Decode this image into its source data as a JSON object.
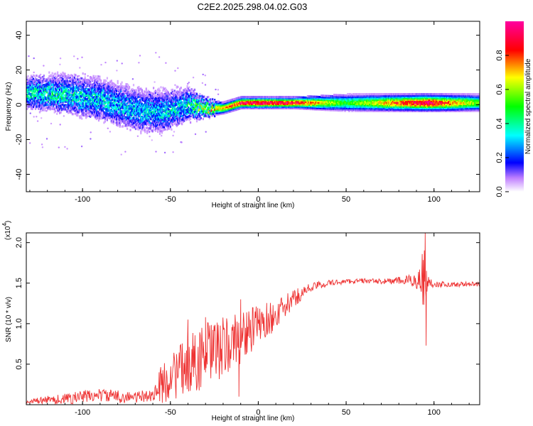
{
  "chart_data": [
    {
      "type": "heatmap",
      "title": "C2E2.2025.298.04.02.G03",
      "xlabel": "Height of straight line (km)",
      "ylabel": "Frequency (Hz)",
      "xlim": [
        -132,
        126
      ],
      "ylim": [
        -50,
        48
      ],
      "xticks": [
        "-100",
        "-50",
        "0",
        "50",
        "100"
      ],
      "yticks": [
        "40",
        "20",
        "0",
        "-20",
        "-40"
      ],
      "colorbar": {
        "label": "Normalized spectral amplitude",
        "range": [
          0,
          1
        ],
        "ticks": [
          "0.0",
          "0.2",
          "0.4",
          "0.6",
          "0.8"
        ],
        "colors": [
          "#ffffff",
          "#a000ff",
          "#0000ff",
          "#00ffff",
          "#00ff00",
          "#ffff00",
          "#ff0000",
          "#ff00a0"
        ]
      },
      "trace": [
        {
          "x": -132,
          "f": 7,
          "amp": 0.35,
          "spread": 6
        },
        {
          "x": -110,
          "f": 6,
          "amp": 0.35,
          "spread": 7
        },
        {
          "x": -90,
          "f": 3,
          "amp": 0.3,
          "spread": 8
        },
        {
          "x": -70,
          "f": -3,
          "amp": 0.3,
          "spread": 8
        },
        {
          "x": -55,
          "f": -4,
          "amp": 0.3,
          "spread": 8
        },
        {
          "x": -40,
          "f": 0,
          "amp": 0.35,
          "spread": 6
        },
        {
          "x": -30,
          "f": -2,
          "amp": 0.6,
          "spread": 3
        },
        {
          "x": -20,
          "f": -2,
          "amp": 0.75,
          "spread": 2
        },
        {
          "x": -10,
          "f": 1,
          "amp": 0.9,
          "spread": 2
        },
        {
          "x": 0,
          "f": 1,
          "amp": 0.95,
          "spread": 2
        },
        {
          "x": 20,
          "f": 1,
          "amp": 0.9,
          "spread": 2
        },
        {
          "x": 50,
          "f": 1,
          "amp": 0.5,
          "spread": 3
        },
        {
          "x": 75,
          "f": 1,
          "amp": 0.75,
          "spread": 3
        },
        {
          "x": 95,
          "f": 1,
          "amp": 0.95,
          "spread": 3
        },
        {
          "x": 126,
          "f": 1,
          "amp": 0.55,
          "spread": 3
        }
      ]
    },
    {
      "type": "line",
      "ylabel": "SNR (10 * v/v)",
      "xlabel": "Height of straight line (km)",
      "multiplier_base": "(x10",
      "multiplier_exp": "4",
      "multiplier_close": ")",
      "xlim": [
        -132,
        126
      ],
      "ylim": [
        0,
        2.12
      ],
      "xticks": [
        "-100",
        "-50",
        "0",
        "50",
        "100"
      ],
      "yticks": [
        "0.5",
        "1.0",
        "1.5",
        "2.0"
      ],
      "series": [
        {
          "name": "SNR",
          "color": "#ee3333",
          "x": [
            -132,
            -120,
            -110,
            -100,
            -90,
            -80,
            -70,
            -60,
            -55,
            -50,
            -45,
            -40,
            -35,
            -30,
            -25,
            -20,
            -15,
            -10,
            -5,
            0,
            5,
            10,
            15,
            20,
            25,
            30,
            40,
            50,
            60,
            70,
            80,
            88,
            92,
            94,
            95,
            96,
            98,
            100,
            110,
            120,
            126
          ],
          "y": [
            0.03,
            0.06,
            0.07,
            0.1,
            0.12,
            0.1,
            0.09,
            0.12,
            0.25,
            0.35,
            0.4,
            0.5,
            0.55,
            0.6,
            0.65,
            0.7,
            0.75,
            0.85,
            0.9,
            0.98,
            1.05,
            1.1,
            1.2,
            1.3,
            1.38,
            1.45,
            1.5,
            1.52,
            1.53,
            1.52,
            1.53,
            1.53,
            1.55,
            1.6,
            1.45,
            1.52,
            1.5,
            1.49,
            1.48,
            1.49,
            1.48
          ],
          "noise": [
            0.03,
            0.05,
            0.07,
            0.08,
            0.08,
            0.08,
            0.07,
            0.08,
            0.25,
            0.3,
            0.33,
            0.36,
            0.4,
            0.42,
            0.4,
            0.38,
            0.36,
            0.34,
            0.3,
            0.25,
            0.22,
            0.18,
            0.15,
            0.12,
            0.08,
            0.06,
            0.04,
            0.03,
            0.03,
            0.03,
            0.05,
            0.08,
            0.15,
            0.5,
            0.4,
            0.15,
            0.06,
            0.04,
            0.03,
            0.03,
            0.03
          ]
        }
      ],
      "spikes": [
        {
          "x": -40,
          "y": 1.05
        },
        {
          "x": -30,
          "y": 1.08
        },
        {
          "x": -10,
          "y": 1.3
        },
        {
          "x": -11,
          "y": 0.1
        },
        {
          "x": -3,
          "y": 1.2
        },
        {
          "x": 95,
          "y": 2.12
        },
        {
          "x": 95.5,
          "y": 0.73
        }
      ]
    }
  ]
}
